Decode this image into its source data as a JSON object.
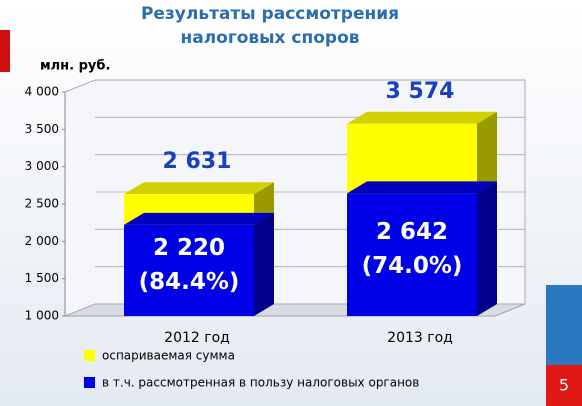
{
  "chart_data": {
    "type": "bar3d",
    "title": [
      "Результаты рассмотрения",
      "налоговых споров"
    ],
    "y_axis_label": "млн. руб.",
    "categories": [
      "2012 год",
      "2013 год"
    ],
    "series": [
      {
        "name": "оспариваемая сумма",
        "color": "#ffff00",
        "values": [
          2631,
          3574
        ],
        "value_labels": [
          "2 631",
          "3 574"
        ]
      },
      {
        "name": "в т.ч. рассмотренная в пользу налоговых органов",
        "color": "#0000e6",
        "values": [
          2220,
          2642
        ],
        "value_labels": [
          "2 220",
          "2 642"
        ],
        "share_labels": [
          "(84.4%)",
          "(74.0%)"
        ]
      }
    ],
    "ylim": [
      1000,
      4000
    ],
    "yticks": [
      {
        "value": 1000,
        "label": "1 000"
      },
      {
        "value": 1500,
        "label": "1 500"
      },
      {
        "value": 2000,
        "label": "2 000"
      },
      {
        "value": 2500,
        "label": "2 500"
      },
      {
        "value": 3000,
        "label": "3 000"
      },
      {
        "value": 3500,
        "label": "3 500"
      },
      {
        "value": 4000,
        "label": "4 000"
      }
    ],
    "grid": true,
    "page_number": "5"
  }
}
